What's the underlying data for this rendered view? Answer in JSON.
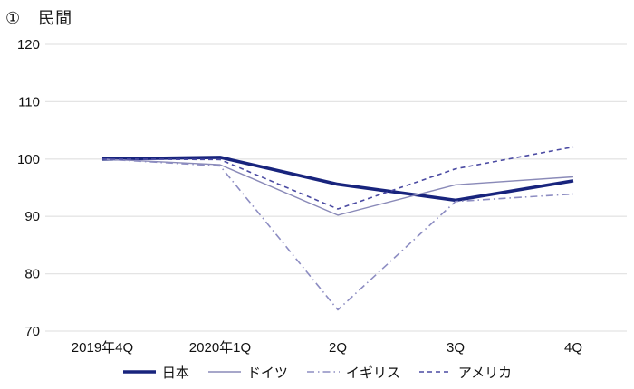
{
  "title": "①　民間",
  "chart_data": {
    "type": "line",
    "title": "①　民間",
    "categories": [
      "2019年4Q",
      "2020年1Q",
      "2Q",
      "3Q",
      "4Q"
    ],
    "series": [
      {
        "name": "日本",
        "values": [
          100,
          100.3,
          95.6,
          92.8,
          96.2
        ],
        "color": "#18247d",
        "width": 3.6,
        "dash": "solid"
      },
      {
        "name": "ドイツ",
        "values": [
          100,
          99.0,
          90.2,
          95.5,
          96.9
        ],
        "color": "#8a8ab8",
        "width": 1.4,
        "dash": "solid"
      },
      {
        "name": "イギリス",
        "values": [
          100,
          98.8,
          73.7,
          92.6,
          93.9
        ],
        "color": "#8d8dc2",
        "width": 1.6,
        "dash": "dashdot"
      },
      {
        "name": "アメリカ",
        "values": [
          100,
          99.9,
          91.3,
          98.3,
          102.1
        ],
        "color": "#4a4aa2",
        "width": 1.6,
        "dash": "dashed"
      }
    ],
    "ylim": [
      70,
      120
    ],
    "ytick_step": 10,
    "xlabel": "",
    "ylabel": "",
    "grid": "horizontal",
    "gridline_color": "#e4e4e4",
    "tick_label_color": "#111111",
    "legend_position": "bottom"
  }
}
